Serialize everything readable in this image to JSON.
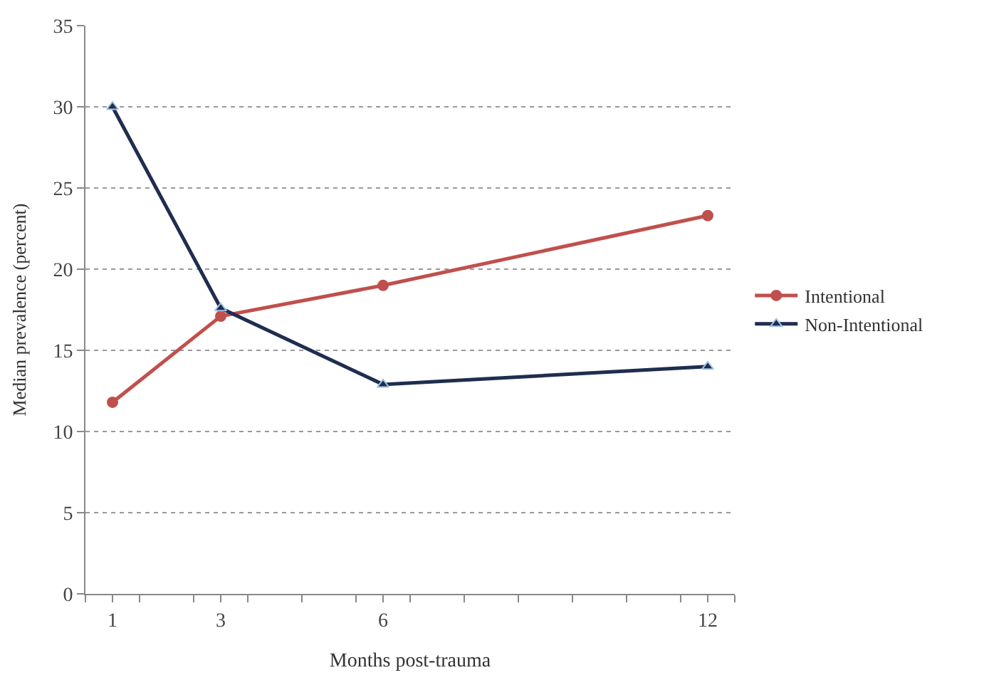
{
  "chart_data": {
    "type": "line",
    "xlabel": "Months post-trauma",
    "ylabel": "Median prevalence (percent)",
    "x": [
      1,
      3,
      6,
      12
    ],
    "series": [
      {
        "name": "Intentional",
        "color": "#c0504d",
        "values": [
          11.8,
          17.1,
          19.0,
          23.3
        ],
        "marker": "circle"
      },
      {
        "name": "Non-Intentional",
        "color": "#1f2d4f",
        "values": [
          30.0,
          17.6,
          12.9,
          14.0
        ],
        "marker": "triangle"
      }
    ],
    "xlim": [
      0.5,
      12.5
    ],
    "xticks": [
      {
        "value": 0.5,
        "label": null
      },
      {
        "value": 1,
        "label": "1"
      },
      {
        "value": 1.5,
        "label": null
      },
      {
        "value": 2.5,
        "label": null
      },
      {
        "value": 3,
        "label": "3"
      },
      {
        "value": 3.5,
        "label": null
      },
      {
        "value": 4.5,
        "label": null
      },
      {
        "value": 5.5,
        "label": null
      },
      {
        "value": 6,
        "label": "6"
      },
      {
        "value": 6.5,
        "label": null
      },
      {
        "value": 7.5,
        "label": null
      },
      {
        "value": 8.5,
        "label": null
      },
      {
        "value": 9.5,
        "label": null
      },
      {
        "value": 10.5,
        "label": null
      },
      {
        "value": 11.5,
        "label": null
      },
      {
        "value": 12,
        "label": "12"
      },
      {
        "value": 12.5,
        "label": null
      }
    ],
    "ylim": [
      0,
      35
    ],
    "yticks": [
      0,
      5,
      10,
      15,
      20,
      25,
      30,
      35
    ],
    "grid": "y",
    "legend": "right",
    "line_style": "solid"
  }
}
